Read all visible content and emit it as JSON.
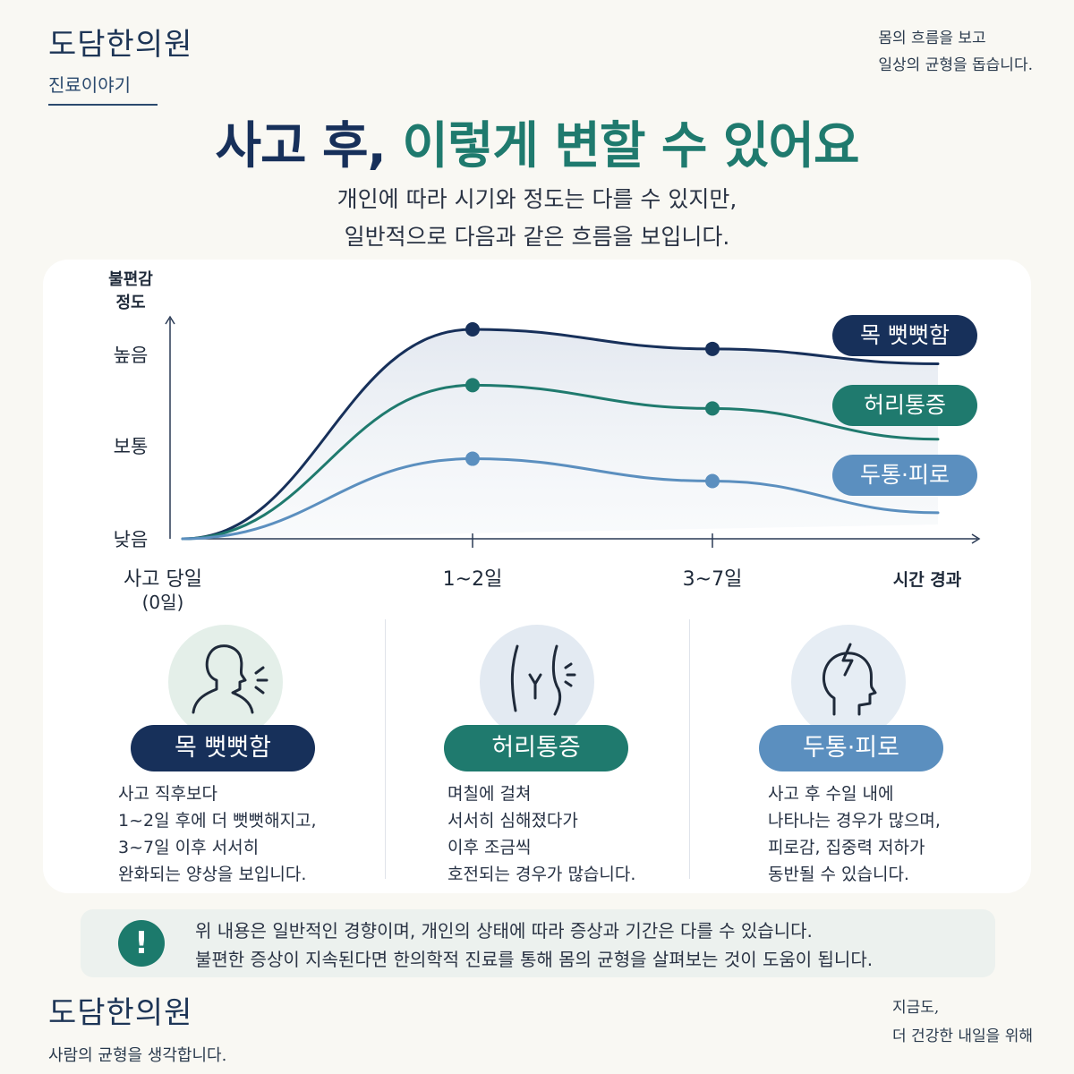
{
  "header": {
    "brand_name": "도담한의원",
    "brand_sub": "진료이야기",
    "slogan_line1": "몸의 흐름을 보고",
    "slogan_line2": "일상의 균형을 돕습니다."
  },
  "title": {
    "part1": "사고 후, ",
    "part2": "이렇게 변할 수 있어요",
    "subtitle_line1": "개인에 따라 시기와 정도는 다를 수 있지만,",
    "subtitle_line2": "일반적으로 다음과 같은 흐름을 보입니다."
  },
  "chart_data": {
    "type": "line",
    "ylabel_line1": "불편감",
    "ylabel_line2": "정도",
    "y_ticks": [
      "낮음",
      "보통",
      "높음"
    ],
    "x_ticks": [
      {
        "label": "사고 당일",
        "sub": "(0일)"
      },
      {
        "label": "1~2일",
        "sub": ""
      },
      {
        "label": "3~7일",
        "sub": ""
      },
      {
        "label": "시간 경과",
        "sub": ""
      }
    ],
    "x_values": [
      0,
      1,
      2,
      3
    ],
    "ylim": [
      0,
      2.3
    ],
    "series": [
      {
        "name": "목 뻣뻣함",
        "color": "#17305a",
        "values": [
          0,
          2.25,
          2.04,
          1.88
        ],
        "markers": [
          1,
          2
        ]
      },
      {
        "name": "허리통증",
        "color": "#1f7a6e",
        "values": [
          0,
          1.65,
          1.4,
          1.07
        ],
        "markers": [
          1,
          2
        ]
      },
      {
        "name": "두통·피로",
        "color": "#5b8fbf",
        "values": [
          0,
          0.86,
          0.62,
          0.28
        ],
        "markers": [
          1,
          2
        ]
      }
    ]
  },
  "columns": [
    {
      "icon": "neck-stiffness-icon",
      "label": "목 뻣뻣함",
      "color": "#17305a",
      "circle_color": "#e4efe9",
      "lines": [
        "사고 직후보다",
        "1~2일 후에 더 뻣뻣해지고,",
        "3~7일 이후 서서히",
        "완화되는 양상을 보입니다."
      ]
    },
    {
      "icon": "lower-back-pain-icon",
      "label": "허리통증",
      "color": "#1f7a6e",
      "circle_color": "#e3eaf2",
      "lines": [
        "며칠에 걸쳐",
        "서서히 심해졌다가",
        "이후 조금씩",
        "호전되는 경우가 많습니다."
      ]
    },
    {
      "icon": "headache-icon",
      "label": "두통·피로",
      "color": "#5b8fbf",
      "circle_color": "#e6edf4",
      "lines": [
        "사고 후 수일 내에",
        "나타나는 경우가 많으며,",
        "피로감, 집중력 저하가",
        "동반될 수 있습니다."
      ]
    }
  ],
  "notice": {
    "icon": "!",
    "line1": "위 내용은 일반적인 경향이며, 개인의 상태에 따라 증상과 기간은 다를 수 있습니다.",
    "line2": "불편한 증상이 지속된다면 한의학적 진료를 통해 몸의 균형을 살펴보는 것이 도움이 됩니다."
  },
  "footer": {
    "brand_name": "도담한의원",
    "brand_sub": "사람의 균형을 생각합니다.",
    "slogan_line1": "지금도,",
    "slogan_line2": "더 건강한 내일을 위해"
  }
}
